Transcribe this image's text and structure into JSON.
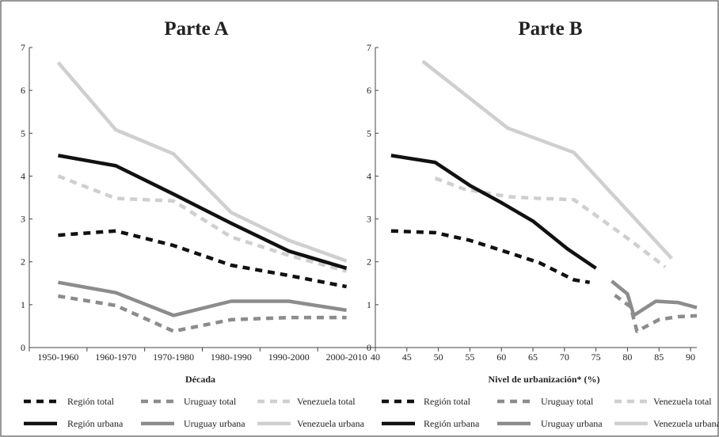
{
  "figure": {
    "legend": [
      {
        "label": "Región total",
        "color": "#111111",
        "dashed": true
      },
      {
        "label": "Uruguay total",
        "color": "#8c8c8c",
        "dashed": true
      },
      {
        "label": "Venezuela total",
        "color": "#cfcfcf",
        "dashed": true
      },
      {
        "label": "Región urbana",
        "color": "#111111",
        "dashed": false
      },
      {
        "label": "Uruguay urbana",
        "color": "#8c8c8c",
        "dashed": false
      },
      {
        "label": "Venezuela urbana",
        "color": "#cfcfcf",
        "dashed": false
      }
    ]
  },
  "chart_data": [
    {
      "type": "line",
      "title": "Parte A",
      "xlabel": "Década",
      "ylabel": "",
      "categories": [
        "1950-1960",
        "1960-1970",
        "1970-1980",
        "1980-1990",
        "1990-2000",
        "2000-2010"
      ],
      "ylim": [
        0,
        7
      ],
      "yticks": [
        0,
        1,
        2,
        3,
        4,
        5,
        6,
        7
      ],
      "series": [
        {
          "name": "Región total",
          "color": "#111111",
          "dashed": true,
          "values": [
            2.62,
            2.72,
            2.38,
            1.92,
            1.68,
            1.42
          ]
        },
        {
          "name": "Uruguay total",
          "color": "#8c8c8c",
          "dashed": true,
          "values": [
            1.2,
            0.98,
            0.38,
            0.65,
            0.7,
            0.7
          ]
        },
        {
          "name": "Venezuela total",
          "color": "#cfcfcf",
          "dashed": true,
          "values": [
            4.0,
            3.48,
            3.42,
            2.58,
            2.15,
            1.78
          ]
        },
        {
          "name": "Región urbana",
          "color": "#111111",
          "dashed": false,
          "values": [
            4.48,
            4.24,
            3.58,
            2.9,
            2.25,
            1.85
          ]
        },
        {
          "name": "Uruguay urbana",
          "color": "#8c8c8c",
          "dashed": false,
          "values": [
            1.52,
            1.28,
            0.75,
            1.08,
            1.08,
            0.87
          ]
        },
        {
          "name": "Venezuela urbana",
          "color": "#cfcfcf",
          "dashed": false,
          "values": [
            6.65,
            5.08,
            4.52,
            3.15,
            2.5,
            2.02
          ]
        }
      ]
    },
    {
      "type": "line",
      "title": "Parte B",
      "xlabel": "Nivel de urbanización* (%)",
      "ylabel": "",
      "xlim": [
        40,
        91
      ],
      "xticks": [
        40,
        45,
        50,
        55,
        60,
        65,
        70,
        75,
        80,
        85,
        90
      ],
      "ylim": [
        0,
        7
      ],
      "yticks": [
        0,
        1,
        2,
        3,
        4,
        5,
        6,
        7
      ],
      "series": [
        {
          "name": "Región total",
          "color": "#111111",
          "dashed": true,
          "points": [
            [
              42.5,
              2.72
            ],
            [
              49.5,
              2.68
            ],
            [
              55,
              2.5
            ],
            [
              61,
              2.22
            ],
            [
              66,
              1.98
            ],
            [
              71.5,
              1.58
            ],
            [
              74,
              1.52
            ]
          ]
        },
        {
          "name": "Uruguay total",
          "color": "#8c8c8c",
          "dashed": true,
          "points": [
            [
              78,
              1.22
            ],
            [
              80.5,
              0.95
            ],
            [
              81.5,
              0.38
            ],
            [
              85,
              0.65
            ],
            [
              88,
              0.72
            ],
            [
              91,
              0.74
            ]
          ]
        },
        {
          "name": "Venezuela total",
          "color": "#cfcfcf",
          "dashed": true,
          "points": [
            [
              49.5,
              3.95
            ],
            [
              54,
              3.7
            ],
            [
              61,
              3.52
            ],
            [
              66,
              3.48
            ],
            [
              71.5,
              3.45
            ],
            [
              80,
              2.55
            ],
            [
              86,
              1.88
            ]
          ]
        },
        {
          "name": "Región urbana",
          "color": "#111111",
          "dashed": false,
          "points": [
            [
              42.5,
              4.48
            ],
            [
              49.5,
              4.32
            ],
            [
              55,
              3.78
            ],
            [
              60,
              3.38
            ],
            [
              65,
              2.95
            ],
            [
              70.5,
              2.3
            ],
            [
              75,
              1.85
            ]
          ]
        },
        {
          "name": "Uruguay urbana",
          "color": "#8c8c8c",
          "dashed": false,
          "points": [
            [
              77.5,
              1.55
            ],
            [
              80,
              1.25
            ],
            [
              81,
              0.75
            ],
            [
              84.5,
              1.08
            ],
            [
              88,
              1.05
            ],
            [
              91,
              0.93
            ]
          ]
        },
        {
          "name": "Venezuela urbana",
          "color": "#cfcfcf",
          "dashed": false,
          "points": [
            [
              47.5,
              6.68
            ],
            [
              61,
              5.12
            ],
            [
              71.5,
              4.55
            ],
            [
              87,
              2.08
            ]
          ]
        }
      ]
    }
  ]
}
